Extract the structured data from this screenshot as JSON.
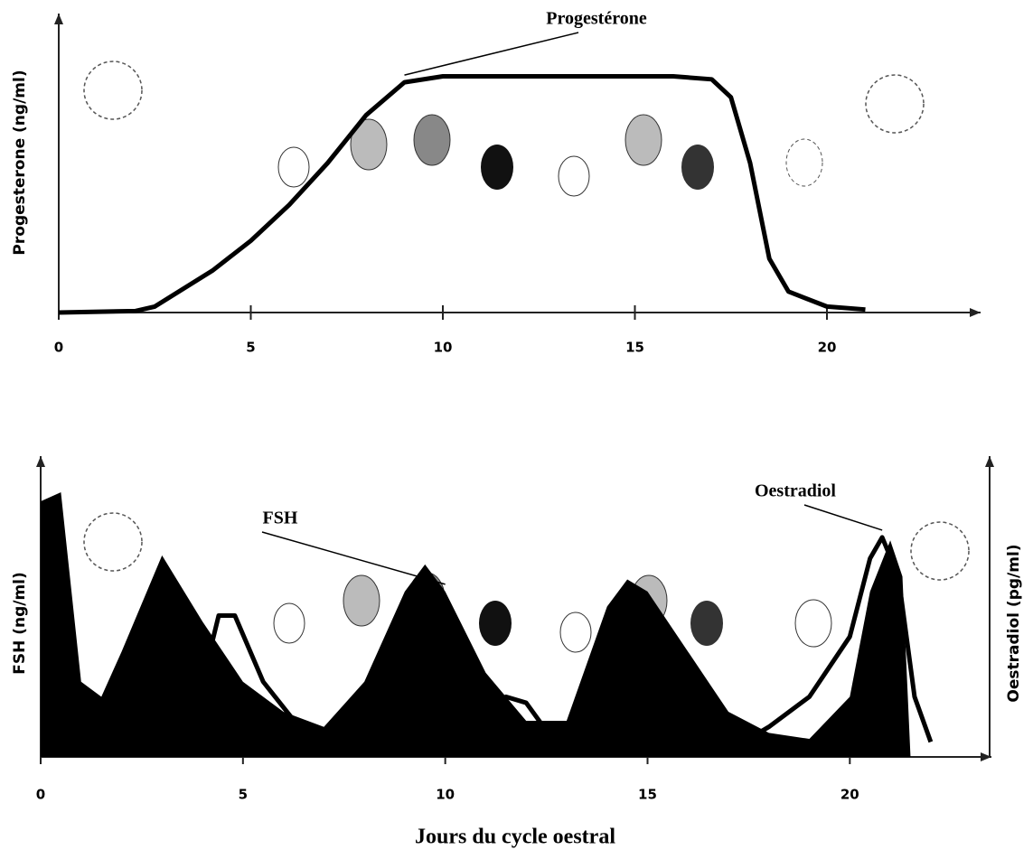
{
  "chart_data": [
    {
      "type": "line",
      "y_label": "Progesterone (ng/ml)",
      "xlim": [
        0,
        24
      ],
      "xticks": [
        0,
        5,
        10,
        15,
        20
      ],
      "ylim": [
        0,
        100
      ],
      "series": [
        {
          "name": "Progestérone",
          "color": "#000000",
          "x": [
            0,
            2,
            2.5,
            3,
            4,
            5,
            6,
            7,
            8,
            9,
            10,
            12,
            14,
            16,
            17,
            17.5,
            18,
            18.5,
            19,
            20,
            21
          ],
          "values": [
            0,
            0.5,
            2,
            6,
            14,
            24,
            36,
            50,
            66,
            77,
            79,
            79,
            79,
            79,
            78,
            72,
            50,
            18,
            7,
            2,
            1
          ]
        }
      ]
    },
    {
      "type": "area",
      "x_label": "Jours du cycle oestral",
      "y_label": "FSH (ng/ml)",
      "y2_label": "Oestradiol (pg/ml)",
      "xlim": [
        0,
        23.5
      ],
      "xticks": [
        0,
        5,
        10,
        15,
        20
      ],
      "ylim": [
        0,
        100
      ],
      "y2lim": [
        0,
        100
      ],
      "series": [
        {
          "name": "FSH",
          "type": "area",
          "color": "#000000",
          "x": [
            0,
            0.5,
            1,
            1.5,
            2,
            3,
            4,
            5,
            6,
            7,
            8,
            9,
            9.5,
            10,
            11,
            12,
            13,
            14,
            14.5,
            15,
            16,
            17,
            18,
            19,
            20,
            20.5,
            21,
            21.3,
            21.5
          ],
          "values": [
            85,
            88,
            25,
            20,
            35,
            67,
            45,
            25,
            15,
            10,
            25,
            55,
            64,
            55,
            28,
            12,
            12,
            50,
            59,
            55,
            35,
            15,
            8,
            6,
            20,
            55,
            72,
            60,
            0
          ]
        },
        {
          "name": "Oestradiol",
          "type": "line",
          "axis": "y2",
          "color": "#000000",
          "x": [
            4,
            4.4,
            4.8,
            5.5,
            6.5,
            7.2,
            9,
            10.3,
            11,
            11.5,
            12,
            12.7,
            14,
            17,
            18,
            19,
            20,
            20.5,
            20.8,
            21.2,
            21.6,
            22
          ],
          "values": [
            25,
            47,
            47,
            25,
            8,
            2,
            1,
            3,
            15,
            20,
            18,
            5,
            2,
            2,
            10,
            20,
            40,
            66,
            73,
            60,
            20,
            5
          ]
        }
      ]
    }
  ]
}
